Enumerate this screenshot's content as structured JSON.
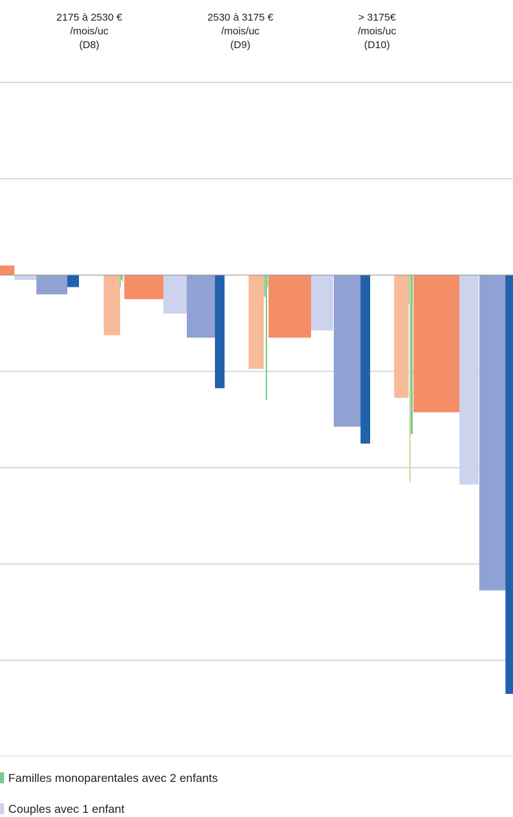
{
  "chart_data": {
    "type": "bar",
    "categories": [
      [
        "2175 à 2530 €",
        "/mois/uc",
        "(D8)"
      ],
      [
        "2530 à 3175 €",
        "/mois/uc",
        "(D9)"
      ],
      [
        "> 3175€",
        "/mois/uc",
        "(D10)"
      ]
    ],
    "ylim": [
      -20,
      12
    ],
    "grid": true,
    "series": [
      {
        "color": "#f8bb9a",
        "values": [
          -2.5,
          -3.9,
          -5.1
        ]
      },
      {
        "color": "#9dd5a5",
        "values": [
          -0.5,
          -0.9,
          -1.2
        ]
      },
      {
        "color": "#7ec98f",
        "values": [
          -0.2,
          -5.2,
          -6.6
        ]
      },
      {
        "color": "#c9dfa4",
        "values": [
          -0.3,
          -0.5,
          -8.6
        ]
      },
      {
        "color": "#f58e68",
        "values": [
          -1.0,
          -2.6,
          -5.7
        ]
      },
      {
        "color": "#cdd3ec",
        "values": [
          -1.6,
          -2.3,
          -8.7
        ]
      },
      {
        "color": "#8fa2d3",
        "values": [
          -2.6,
          -6.3,
          -13.1
        ]
      },
      {
        "color": "#2262ad",
        "values": [
          -4.7,
          -7.0,
          -17.4
        ]
      }
    ],
    "partial_bars": [
      {
        "color": "#f58e68",
        "value": 0.4
      },
      {
        "color": "#cdd3ec",
        "value": -0.2
      },
      {
        "color": "#8fa2d3",
        "value": -0.8
      },
      {
        "color": "#2262ad",
        "value": -0.5
      }
    ]
  },
  "legend": [
    {
      "label": "Familles monoparentales avec 2 enfants",
      "color": "#7ec98f"
    },
    {
      "label": "Couples avec 1 enfant",
      "color": "#cdd3ec"
    }
  ]
}
